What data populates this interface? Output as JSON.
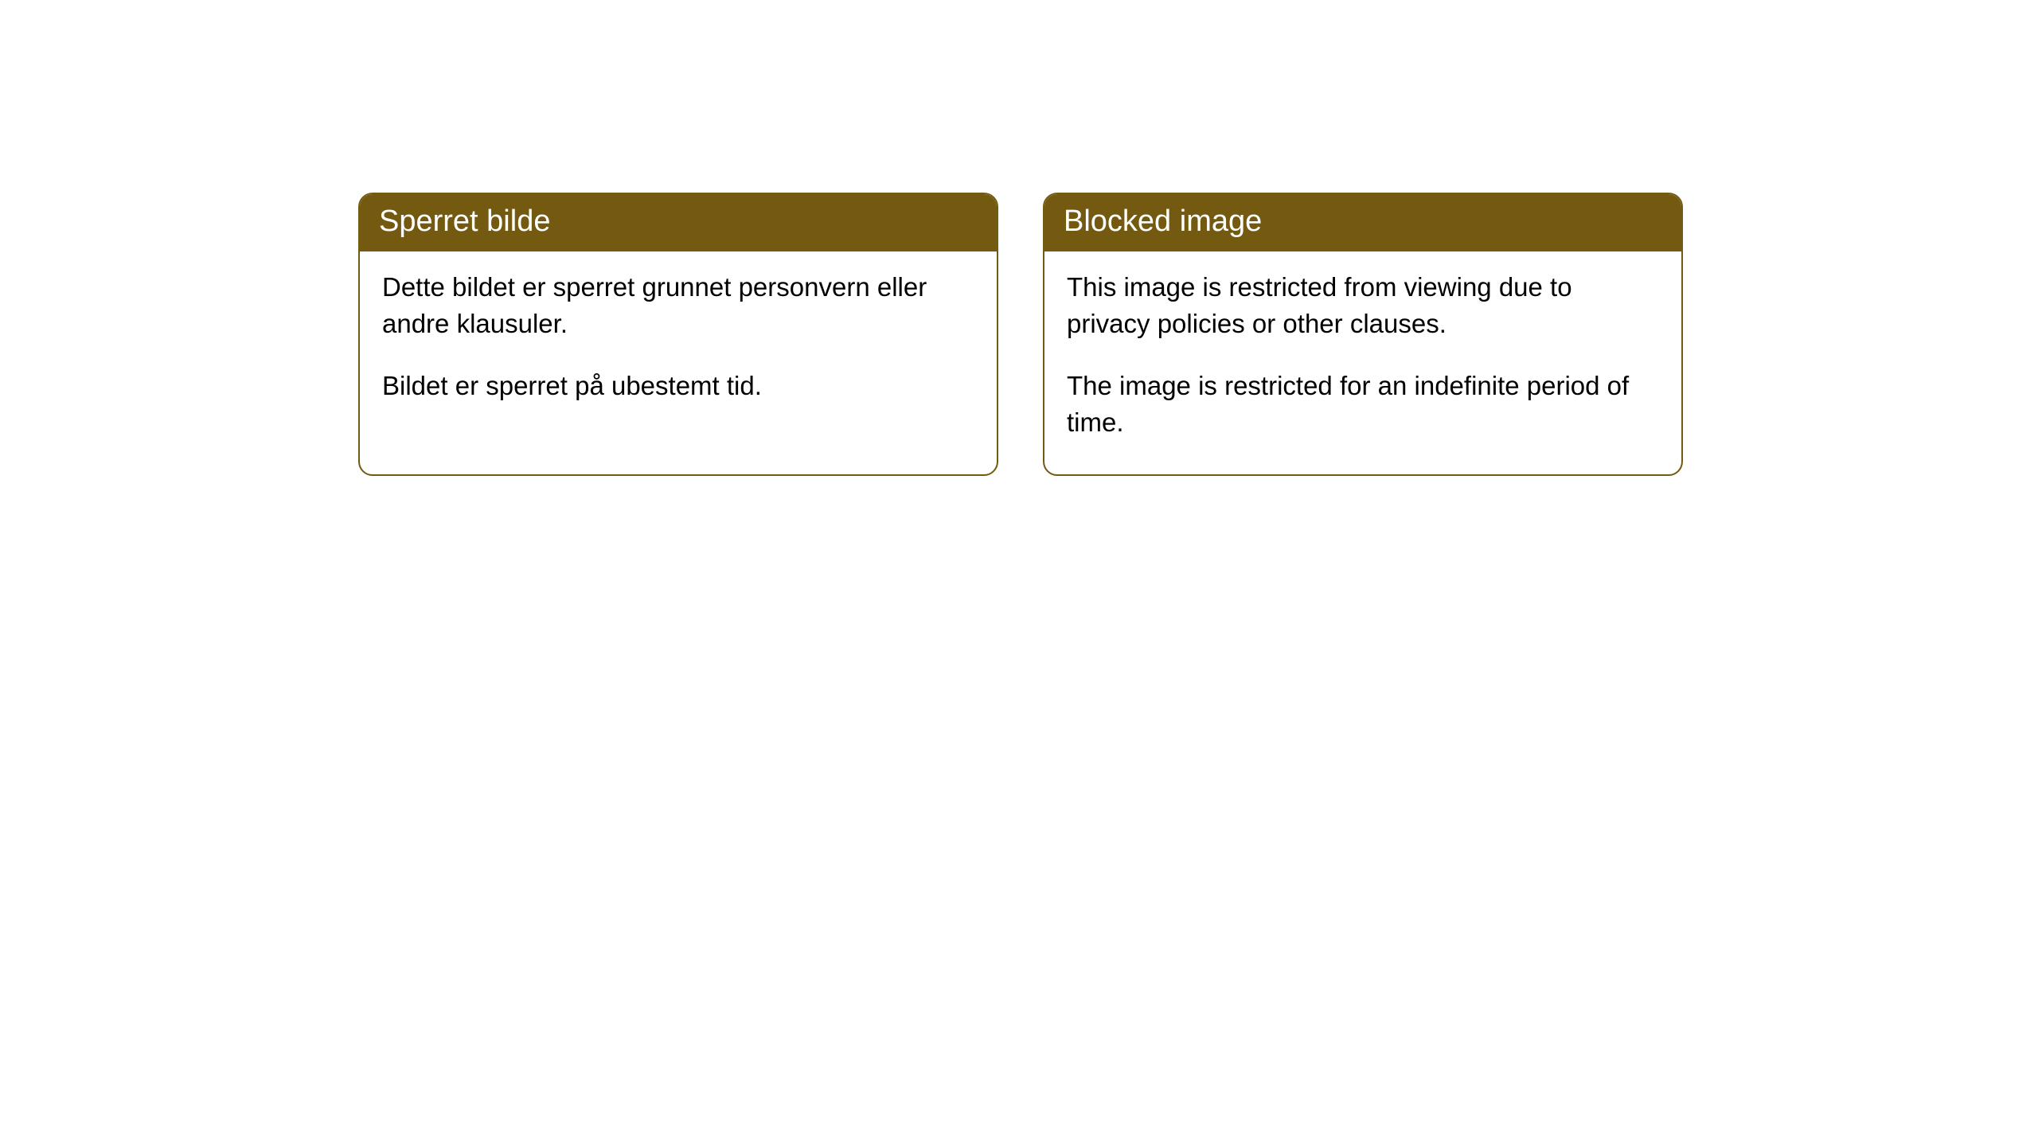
{
  "cards": [
    {
      "title": "Sperret bilde",
      "paragraph1": "Dette bildet er sperret grunnet personvern eller andre klausuler.",
      "paragraph2": "Bildet er sperret på ubestemt tid."
    },
    {
      "title": "Blocked image",
      "paragraph1": "This image is restricted from viewing due to privacy policies or other clauses.",
      "paragraph2": "The image is restricted for an indefinite period of time."
    }
  ],
  "style": {
    "header_background": "#745a11",
    "header_text_color": "#ffffff",
    "border_color": "#745a11",
    "card_background": "#ffffff",
    "body_text_color": "#000000",
    "title_fontsize": 38,
    "body_fontsize": 33,
    "border_radius": 18
  }
}
